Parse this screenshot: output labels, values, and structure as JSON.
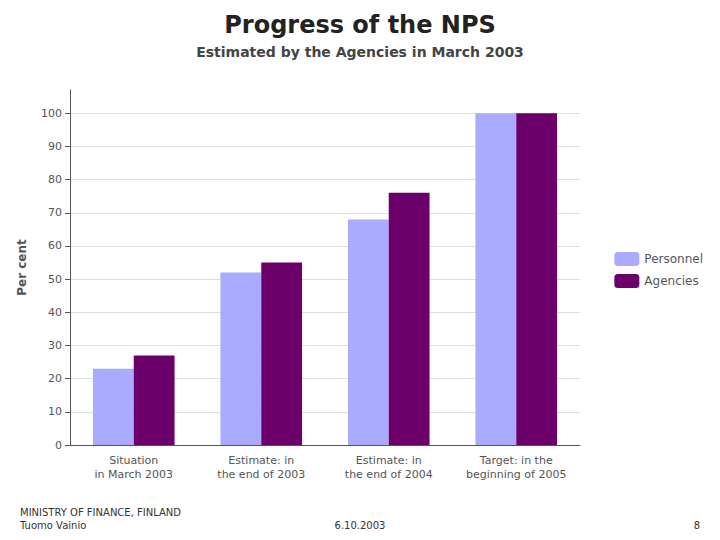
{
  "chart_data": {
    "type": "bar",
    "title": "Progress of the NPS",
    "subtitle": "Estimated by the Agencies in March 2003",
    "categories": [
      "Situation\nin March 2003",
      "Estimate: in\nthe end of 2003",
      "Estimate: in\nthe end of 2004",
      "Target: in the\nbeginning of 2005"
    ],
    "series": [
      {
        "name": "Personnel",
        "color": "#aaaaff",
        "values": [
          23,
          52,
          68,
          100
        ]
      },
      {
        "name": "Agencies",
        "color": "#6b006b",
        "values": [
          27,
          55,
          76,
          100
        ]
      }
    ],
    "ylabel": "Per cent",
    "ylim": [
      0,
      107
    ],
    "yticks": [
      0,
      10,
      20,
      30,
      40,
      50,
      60,
      70,
      80,
      90,
      100
    ],
    "grid": true,
    "legend": "right",
    "annotations": [
      "MINISTRY OF FINANCE, FINLAND\nTuomo Vainio",
      "6.10.2003",
      "8"
    ]
  }
}
